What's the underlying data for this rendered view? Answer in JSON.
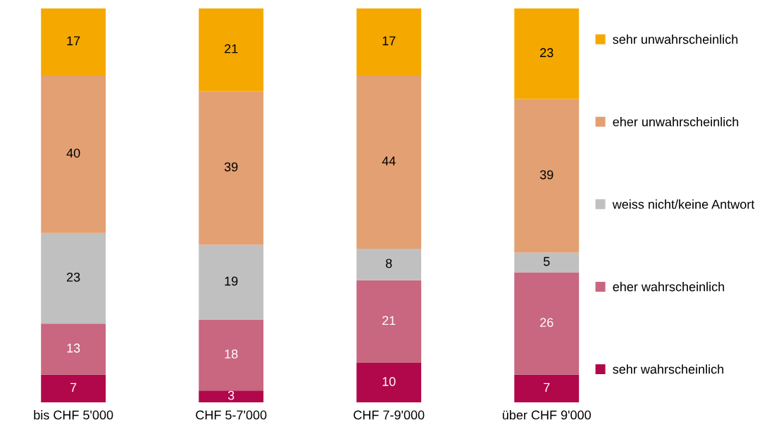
{
  "chart_data": {
    "type": "bar",
    "stacked": true,
    "data_labels": true,
    "legend": "right",
    "grid": false,
    "tick_labels": "x",
    "ylim": [
      0,
      100
    ],
    "categories": [
      "bis CHF 5'000",
      "CHF 5-7'000",
      "CHF 7-9'000",
      "über CHF 9'000"
    ],
    "series": [
      {
        "name": "sehr wahrscheinlich",
        "color": "#b0084a",
        "values": [
          7,
          3,
          10,
          7
        ]
      },
      {
        "name": "eher wahrscheinlich",
        "color": "#c96680",
        "values": [
          13,
          18,
          21,
          26
        ]
      },
      {
        "name": "weiss nicht/keine Antwort",
        "color": "#c0c0c0",
        "values": [
          23,
          19,
          8,
          5
        ]
      },
      {
        "name": "eher unwahrscheinlich",
        "color": "#e3a072",
        "values": [
          40,
          39,
          44,
          39
        ]
      },
      {
        "name": "sehr unwahrscheinlich",
        "color": "#f5a800",
        "values": [
          17,
          21,
          17,
          23
        ]
      }
    ]
  }
}
